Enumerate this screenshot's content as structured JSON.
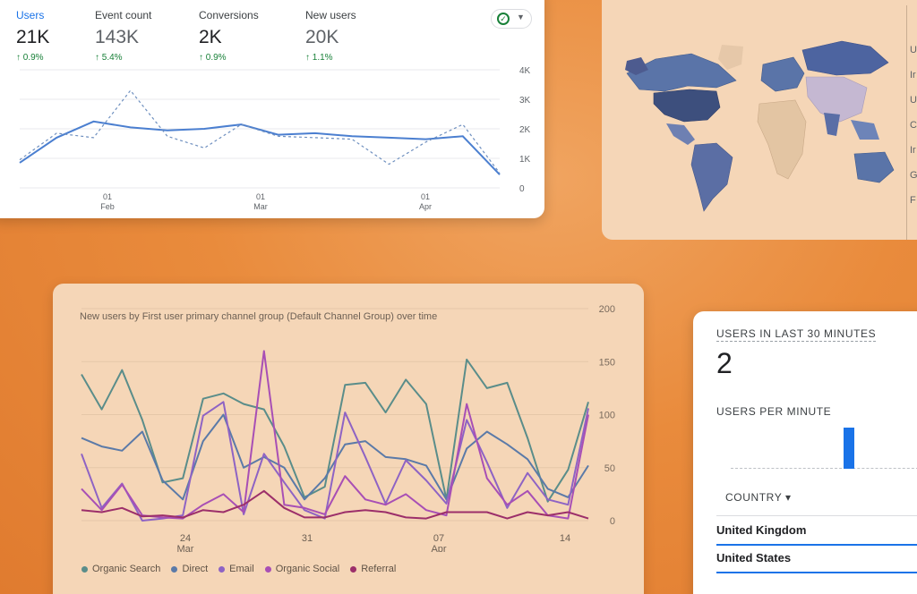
{
  "metrics_card": {
    "metrics": [
      {
        "label": "Users",
        "value": "21K",
        "change": "↑ 0.9%"
      },
      {
        "label": "Event count",
        "value": "143K",
        "change": "↑ 5.4%"
      },
      {
        "label": "Conversions",
        "value": "2K",
        "change": "↑ 0.9%"
      },
      {
        "label": "New users",
        "value": "20K",
        "change": "↑ 1.1%"
      }
    ],
    "status_icon": "check-circle-icon",
    "dropdown_icon": "caret-down-icon"
  },
  "map_card": {
    "list_initials": [
      "U",
      "Ir",
      "U",
      "C",
      "Ir",
      "G",
      "F"
    ]
  },
  "channels_card": {
    "title": "New users by First user primary channel group (Default Channel Group) over time",
    "legend": [
      {
        "name": "Organic Search",
        "color": "#5a8d8a"
      },
      {
        "name": "Direct",
        "color": "#5b7aa8"
      },
      {
        "name": "Email",
        "color": "#8e63c4"
      },
      {
        "name": "Organic Social",
        "color": "#a84fb5"
      },
      {
        "name": "Referral",
        "color": "#9c2f6a"
      }
    ]
  },
  "realtime_card": {
    "heading": "USERS IN LAST 30 MINUTES",
    "count": "2",
    "per_minute_label": "USERS PER MINUTE",
    "country_button": "COUNTRY ▾",
    "rows": [
      "United Kingdom",
      "United States"
    ]
  },
  "chart_data": [
    {
      "type": "line",
      "x_tick_labels": [
        [
          "01",
          "Feb"
        ],
        [
          "01",
          "Mar"
        ],
        [
          "01",
          "Apr"
        ]
      ],
      "y_ticks": [
        "4K",
        "3K",
        "2K",
        "1K",
        "0"
      ],
      "ylim": [
        0,
        4000
      ],
      "series": [
        {
          "values": [
            850,
            1700,
            2250,
            2050,
            1950,
            2000,
            2150,
            1800,
            1850,
            1750,
            1700,
            1650,
            1750,
            450
          ],
          "style": "solid",
          "color": "#4b7fd0"
        },
        {
          "values": [
            950,
            1850,
            1700,
            3300,
            1750,
            1350,
            2150,
            1750,
            1700,
            1650,
            800,
            1550,
            2150,
            500
          ],
          "style": "dashed",
          "color": "#6e8fbf"
        }
      ]
    },
    {
      "type": "line",
      "x_tick_labels": [
        [
          "24",
          "Mar"
        ],
        [
          "31",
          ""
        ],
        [
          "07",
          "Apr"
        ],
        [
          "14",
          ""
        ]
      ],
      "y_ticks": [
        "200",
        "150",
        "100",
        "50",
        "0"
      ],
      "ylim": [
        0,
        200
      ],
      "series": [
        {
          "name": "Organic Search",
          "values": [
            138,
            105,
            142,
            95,
            36,
            40,
            115,
            120,
            110,
            105,
            70,
            22,
            32,
            128,
            130,
            102,
            133,
            110,
            20,
            152,
            125,
            130,
            78,
            18,
            48,
            112
          ]
        },
        {
          "name": "Direct",
          "values": [
            78,
            70,
            66,
            84,
            38,
            20,
            75,
            100,
            50,
            60,
            50,
            20,
            40,
            72,
            75,
            60,
            58,
            52,
            20,
            68,
            84,
            72,
            58,
            30,
            22,
            52
          ]
        },
        {
          "name": "Email",
          "values": [
            63,
            12,
            35,
            0,
            2,
            5,
            99,
            112,
            6,
            63,
            36,
            10,
            2,
            102,
            60,
            16,
            57,
            38,
            16,
            95,
            55,
            12,
            45,
            20,
            15,
            106
          ]
        },
        {
          "name": "Organic Social",
          "values": [
            30,
            10,
            34,
            5,
            3,
            2,
            15,
            25,
            8,
            160,
            15,
            12,
            6,
            42,
            20,
            15,
            25,
            10,
            5,
            110,
            40,
            15,
            28,
            5,
            2,
            100
          ]
        },
        {
          "name": "Referral",
          "values": [
            10,
            8,
            12,
            4,
            5,
            3,
            10,
            8,
            15,
            28,
            12,
            3,
            3,
            8,
            10,
            8,
            3,
            2,
            8,
            8,
            8,
            2,
            8,
            5,
            8,
            2
          ]
        }
      ]
    }
  ]
}
